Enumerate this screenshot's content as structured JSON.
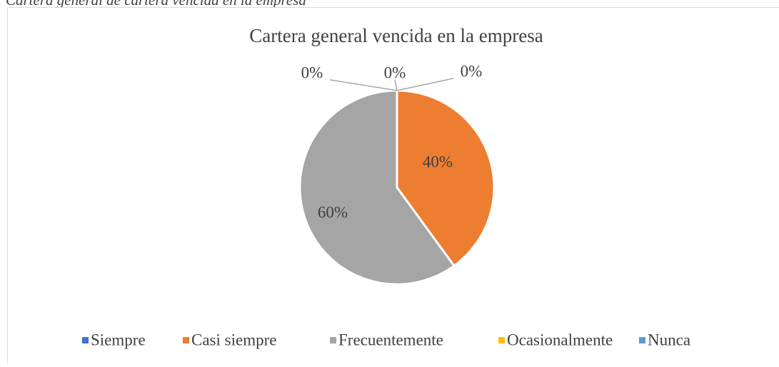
{
  "caption": "Cartera general de cartera vencida en la empresa",
  "chart_data": {
    "type": "pie",
    "title": "Cartera general vencida en la empresa",
    "categories": [
      "Siempre",
      "Casi siempre",
      "Frecuentemente",
      "Ocasionalmente",
      "Nunca"
    ],
    "values": [
      0,
      40,
      60,
      0,
      0
    ],
    "value_labels": [
      "0%",
      "40%",
      "60%",
      "0%",
      "0%"
    ],
    "colors": [
      "#4472c4",
      "#ed7d31",
      "#a5a5a5",
      "#ffc000",
      "#5b9bd5"
    ],
    "legend": "bottom"
  }
}
